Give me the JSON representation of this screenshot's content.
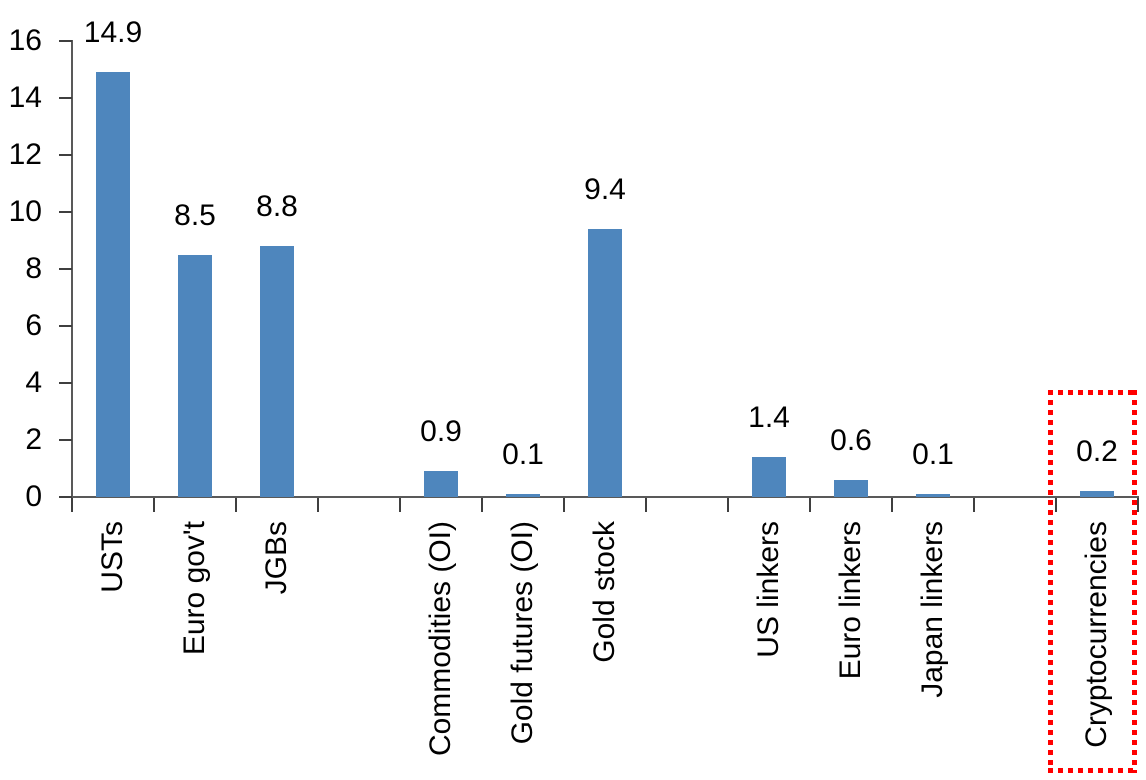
{
  "chart_data": {
    "type": "bar",
    "title": "",
    "xlabel": "",
    "ylabel": "",
    "categories": [
      "USTs",
      "Euro gov't",
      "JGBs",
      "",
      "Commodities (OI)",
      "Gold futures (OI)",
      "Gold stock",
      "",
      "US linkers",
      "Euro linkers",
      "Japan linkers",
      "",
      "Cryptocurrencies"
    ],
    "values": [
      14.9,
      8.5,
      8.8,
      null,
      0.9,
      0.1,
      9.4,
      null,
      1.4,
      0.6,
      0.1,
      null,
      0.2
    ],
    "data_labels": [
      "14.9",
      "8.5",
      "8.8",
      "",
      "0.9",
      "0.1",
      "9.4",
      "",
      "1.4",
      "0.6",
      "0.1",
      "",
      "0.2"
    ],
    "ylim": [
      0,
      16
    ],
    "yticks": [
      0,
      2,
      4,
      6,
      8,
      10,
      12,
      14,
      16
    ],
    "grid": false,
    "legend": false,
    "bar_color": "#4E86BD",
    "axis_color": "#595959",
    "text_color": "#000000",
    "highlight": {
      "category": "Cryptocurrencies",
      "style": "dotted-rectangle",
      "color": "#FF0000"
    }
  }
}
